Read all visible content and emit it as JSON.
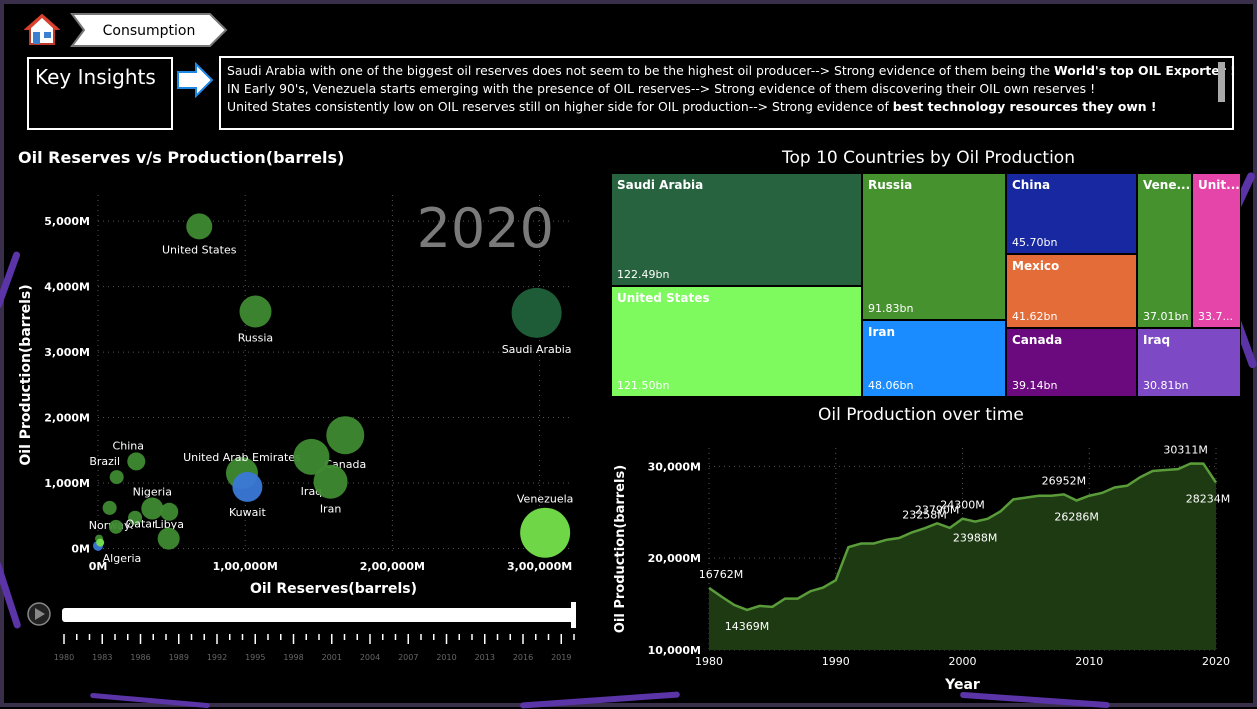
{
  "nav": {
    "tab_label": "Consumption",
    "home_icon": "home-icon"
  },
  "insights": {
    "header": "Key Insights",
    "lines": [
      {
        "text": "Saudi Arabia with one of the biggest oil reserves does not seem to be the highest oil producer--> Strong evidence of them being the ",
        "bold": "World's top OIL Exporter !"
      },
      {
        "text": " IN Early 90's, Venezuela starts emerging with the presence of OIL reserves--> Strong evidence of them discovering their OIL own reserves !",
        "bold": ""
      },
      {
        "text": "United States consistently low on OIL reserves still on higher side for OIL production--> Strong evidence of ",
        "bold": "best technology resources they own !"
      }
    ]
  },
  "scatter": {
    "title": "Oil Reserves v/s Production(barrels)",
    "chart_data": {
      "type": "scatter",
      "title": "Oil Reserves v/s Production(barrels)",
      "xlabel": "Oil Reserves(barrels)",
      "ylabel": "Oil Production(barrels)",
      "year_label": "2020",
      "xlim": [
        0,
        320000
      ],
      "ylim": [
        -100,
        5400
      ],
      "x_ticks": [
        {
          "v": 0,
          "l": "0M"
        },
        {
          "v": 100000,
          "l": "1,00,000M"
        },
        {
          "v": 200000,
          "l": "2,00,000M"
        },
        {
          "v": 300000,
          "l": "3,00,000M"
        }
      ],
      "y_ticks": [
        {
          "v": 0,
          "l": "0M"
        },
        {
          "v": 1000,
          "l": "1,000M"
        },
        {
          "v": 2000,
          "l": "2,000M"
        },
        {
          "v": 3000,
          "l": "3,000M"
        },
        {
          "v": 4000,
          "l": "4,000M"
        },
        {
          "v": 5000,
          "l": "5,000M"
        }
      ],
      "points": [
        {
          "name": "United States",
          "x": 68800,
          "y": 4920,
          "r": 13,
          "color": "#3f8a32"
        },
        {
          "name": "Russia",
          "x": 107000,
          "y": 3620,
          "r": 16,
          "color": "#3f8a32"
        },
        {
          "name": "Saudi Arabia",
          "x": 298000,
          "y": 3600,
          "r": 25,
          "color": "#20603a"
        },
        {
          "name": "China",
          "x": 26000,
          "y": 1330,
          "r": 9,
          "color": "#3f8a32"
        },
        {
          "name": "Brazil",
          "x": 12700,
          "y": 1090,
          "r": 7,
          "color": "#3f8a32"
        },
        {
          "name": "United Arab Emirates",
          "x": 97800,
          "y": 1150,
          "r": 16,
          "color": "#3f8a32"
        },
        {
          "name": "Canada",
          "x": 168000,
          "y": 1730,
          "r": 19,
          "color": "#3f8a32"
        },
        {
          "name": "Iraq",
          "x": 145000,
          "y": 1400,
          "r": 18,
          "color": "#3f8a32"
        },
        {
          "name": "Iran",
          "x": 158000,
          "y": 1020,
          "r": 17,
          "color": "#3f8a32"
        },
        {
          "name": "Kuwait",
          "x": 101500,
          "y": 940,
          "r": 15,
          "color": "#3a78d8"
        },
        {
          "name": "Nigeria",
          "x": 36900,
          "y": 610,
          "r": 11,
          "color": "#3f8a32"
        },
        {
          "name": "Libya",
          "x": 48400,
          "y": 560,
          "r": 9,
          "color": "#3f8a32"
        },
        {
          "name": "Qatar",
          "x": 25200,
          "y": 470,
          "r": 7,
          "color": "#3f8a32"
        },
        {
          "name": "Norway",
          "x": 7900,
          "y": 620,
          "r": 7,
          "color": "#3f8a32"
        },
        {
          "name": "Algeria",
          "x": 12200,
          "y": 330,
          "r": 7,
          "color": "#3f8a32"
        },
        {
          "name": "Venezuela",
          "x": 303800,
          "y": 240,
          "r": 25,
          "color": "#74e24b"
        },
        {
          "name": "",
          "x": 48000,
          "y": 150,
          "r": 11,
          "color": "#3f8a32"
        },
        {
          "name": "",
          "x": 0,
          "y": 40,
          "r": 5,
          "color": "#3a78d8"
        },
        {
          "name": "",
          "x": 700,
          "y": 150,
          "r": 4,
          "color": "#3f8a32"
        },
        {
          "name": "",
          "x": 1500,
          "y": 90,
          "r": 4,
          "color": "#74e24b"
        }
      ]
    }
  },
  "timeline": {
    "play_icon": "play-icon",
    "years": [
      "1980",
      "1983",
      "1986",
      "1989",
      "1992",
      "1995",
      "1998",
      "2001",
      "2004",
      "2007",
      "2010",
      "2013",
      "2016",
      "2019"
    ],
    "current_year": "2020"
  },
  "treemap": {
    "title": "Top 10 Countries by Oil Production",
    "chart_data": {
      "type": "treemap",
      "title": "Top 10 Countries by Oil Production",
      "items": [
        {
          "name": "Saudi Arabia",
          "value": 122.49,
          "label": "122.49bn",
          "color": "#27633f"
        },
        {
          "name": "United States",
          "value": 121.5,
          "label": "121.50bn",
          "color": "#7efa5e"
        },
        {
          "name": "Russia",
          "value": 91.83,
          "label": "91.83bn",
          "color": "#45922f"
        },
        {
          "name": "Iran",
          "value": 48.06,
          "label": "48.06bn",
          "color": "#1a8cff"
        },
        {
          "name": "China",
          "value": 45.7,
          "label": "45.70bn",
          "color": "#1828a0"
        },
        {
          "name": "Mexico",
          "value": 41.62,
          "label": "41.62bn",
          "color": "#e36c38"
        },
        {
          "name": "Canada",
          "value": 39.14,
          "label": "39.14bn",
          "color": "#6b0a7e"
        },
        {
          "name": "Venezuela",
          "value": 37.01,
          "label": "37.01bn",
          "color": "#45922f",
          "display": "Vene..."
        },
        {
          "name": "United Arab Emirates",
          "value": 33.7,
          "label": "33.7...",
          "color": "#e545a8",
          "display": "Unit..."
        },
        {
          "name": "Iraq",
          "value": 30.81,
          "label": "30.81bn",
          "color": "#7d49c4"
        }
      ]
    }
  },
  "area": {
    "title": "Oil Production over time",
    "chart_data": {
      "type": "area",
      "title": "Oil Production over time",
      "xlabel": "Year",
      "ylabel": "Oil Production(barrels)",
      "xlim": [
        1980,
        2020
      ],
      "ylim": [
        10000,
        32000
      ],
      "x_ticks": [
        1980,
        1990,
        2000,
        2010,
        2020
      ],
      "y_ticks": [
        {
          "v": 10000,
          "l": "10,000M"
        },
        {
          "v": 20000,
          "l": "20,000M"
        },
        {
          "v": 30000,
          "l": "30,000M"
        }
      ],
      "color": "#5a9c3a",
      "fill": "#1e3a12",
      "x": [
        1980,
        1981,
        1982,
        1983,
        1984,
        1985,
        1986,
        1987,
        1988,
        1989,
        1990,
        1991,
        1992,
        1993,
        1994,
        1995,
        1996,
        1997,
        1998,
        1999,
        2000,
        2001,
        2002,
        2003,
        2004,
        2005,
        2006,
        2007,
        2008,
        2009,
        2010,
        2011,
        2012,
        2013,
        2014,
        2015,
        2016,
        2017,
        2018,
        2019,
        2020
      ],
      "y": [
        16762,
        15800,
        14900,
        14369,
        14800,
        14700,
        15600,
        15600,
        16400,
        16800,
        17600,
        21200,
        21600,
        21600,
        22000,
        22200,
        22800,
        23258,
        23790,
        23300,
        24300,
        23988,
        24300,
        25100,
        26400,
        26600,
        26800,
        26800,
        26952,
        26286,
        26800,
        27100,
        27700,
        27900,
        28800,
        29500,
        29600,
        29700,
        30311,
        30300,
        28234
      ],
      "labels": [
        {
          "year": 1980,
          "value": 16762,
          "text": "16762M",
          "pos": "above"
        },
        {
          "year": 1983,
          "value": 14369,
          "text": "14369M",
          "pos": "below"
        },
        {
          "year": 1997,
          "value": 23258,
          "text": "23258M",
          "pos": "above"
        },
        {
          "year": 1998,
          "value": 23790,
          "text": "23790M",
          "pos": "above"
        },
        {
          "year": 2000,
          "value": 24300,
          "text": "24300M",
          "pos": "above"
        },
        {
          "year": 2001,
          "value": 23988,
          "text": "23988M",
          "pos": "below"
        },
        {
          "year": 2008,
          "value": 26952,
          "text": "26952M",
          "pos": "above"
        },
        {
          "year": 2009,
          "value": 26286,
          "text": "26286M",
          "pos": "below"
        },
        {
          "year": 2018,
          "value": 30311,
          "text": "30311M",
          "pos": "above"
        },
        {
          "year": 2020,
          "value": 28234,
          "text": "28234M",
          "pos": "below"
        }
      ]
    }
  },
  "colors": {
    "accent_purple": "#7a4bd6",
    "frame": "#3a2f4a"
  }
}
